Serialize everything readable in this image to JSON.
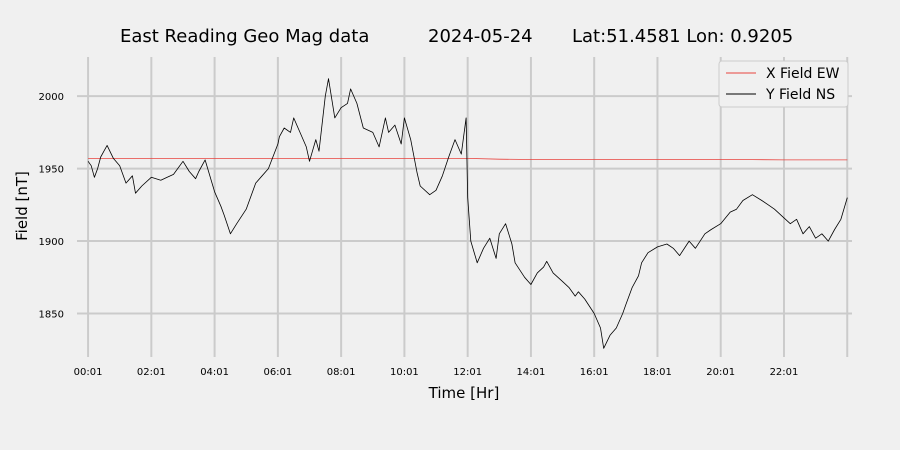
{
  "chart_data": {
    "type": "line",
    "title_parts": [
      "East Reading Geo Mag data",
      "2024-05-24",
      "Lat:51.4581  Lon: 0.9205"
    ],
    "xlabel": "Time  [Hr]",
    "ylabel": "Field  [nT]",
    "xlim": [
      -0.35,
      24.15
    ],
    "ylim": [
      1820,
      2027
    ],
    "x_ticks": [
      0,
      2,
      4,
      6,
      8,
      10,
      12,
      14,
      16,
      18,
      20,
      22,
      24
    ],
    "x_tick_labels": [
      "00:01",
      "02:01",
      "04:01",
      "06:01",
      "08:01",
      "10:01",
      "12:01",
      "14:01",
      "16:01",
      "18:01",
      "20:01",
      "22:01",
      ""
    ],
    "y_ticks": [
      1850,
      1900,
      1950,
      2000
    ],
    "y_tick_labels": [
      "1850",
      "1900",
      "1950",
      "2000"
    ],
    "grid": true,
    "legend_position": "top-right",
    "series": [
      {
        "name": "X Field EW",
        "color": "#e8433e",
        "x": [
          0,
          1,
          2,
          3,
          4,
          5,
          6,
          7,
          8,
          9,
          10,
          11,
          12,
          13,
          14,
          15,
          16,
          17,
          18,
          19,
          20,
          21,
          22,
          23,
          24
        ],
        "values": [
          1957,
          1957,
          1957,
          1957,
          1957,
          1957,
          1957,
          1957,
          1957,
          1957,
          1957,
          1957,
          1957,
          1956.5,
          1956.3,
          1956.3,
          1956.3,
          1956.3,
          1956.3,
          1956.3,
          1956.2,
          1956.2,
          1956,
          1956,
          1956
        ]
      },
      {
        "name": "Y Field NS",
        "color": "#000000",
        "x": [
          0,
          0.1,
          0.2,
          0.3,
          0.4,
          0.5,
          0.6,
          0.8,
          1.0,
          1.2,
          1.4,
          1.5,
          1.7,
          2.0,
          2.3,
          2.5,
          2.7,
          3.0,
          3.2,
          3.4,
          3.5,
          3.7,
          4.0,
          4.2,
          4.3,
          4.5,
          4.7,
          5.0,
          5.3,
          5.5,
          5.7,
          6.0,
          6.05,
          6.2,
          6.4,
          6.5,
          6.7,
          6.9,
          7.0,
          7.2,
          7.3,
          7.5,
          7.6,
          7.8,
          8.0,
          8.2,
          8.3,
          8.5,
          8.7,
          9.0,
          9.2,
          9.4,
          9.5,
          9.7,
          9.9,
          10.0,
          10.2,
          10.4,
          10.5,
          10.8,
          11.0,
          11.2,
          11.4,
          11.6,
          11.8,
          11.95,
          12.0,
          12.1,
          12.3,
          12.5,
          12.7,
          12.9,
          13.0,
          13.2,
          13.4,
          13.5,
          13.8,
          14.0,
          14.2,
          14.4,
          14.5,
          14.7,
          15.0,
          15.2,
          15.4,
          15.5,
          15.7,
          16.0,
          16.2,
          16.3,
          16.5,
          16.7,
          16.9,
          17.0,
          17.2,
          17.4,
          17.5,
          17.7,
          18.0,
          18.3,
          18.5,
          18.7,
          19.0,
          19.2,
          19.5,
          19.7,
          20.0,
          20.3,
          20.5,
          20.7,
          21.0,
          21.3,
          21.5,
          21.7,
          22.0,
          22.2,
          22.4,
          22.6,
          22.8,
          23.0,
          23.2,
          23.4,
          23.6,
          23.8,
          24.0
        ],
        "values": [
          1955,
          1952,
          1944,
          1950,
          1958,
          1962,
          1966,
          1957,
          1952,
          1940,
          1945,
          1933,
          1938,
          1944,
          1942,
          1944,
          1946,
          1955,
          1948,
          1943,
          1948,
          1956,
          1934,
          1924,
          1918,
          1905,
          1912,
          1922,
          1940,
          1945,
          1950,
          1967,
          1972,
          1978,
          1975,
          1985,
          1975,
          1965,
          1955,
          1970,
          1962,
          2000,
          2012,
          1985,
          1992,
          1995,
          2005,
          1995,
          1978,
          1975,
          1965,
          1985,
          1975,
          1980,
          1967,
          1985,
          1970,
          1947,
          1938,
          1932,
          1935,
          1945,
          1958,
          1970,
          1960,
          1985,
          1930,
          1900,
          1885,
          1895,
          1902,
          1888,
          1905,
          1912,
          1898,
          1885,
          1875,
          1870,
          1878,
          1882,
          1886,
          1878,
          1872,
          1868,
          1862,
          1865,
          1860,
          1850,
          1840,
          1826,
          1835,
          1840,
          1850,
          1856,
          1868,
          1876,
          1885,
          1892,
          1896,
          1898,
          1895,
          1890,
          1900,
          1895,
          1905,
          1908,
          1912,
          1920,
          1922,
          1928,
          1932,
          1928,
          1925,
          1922,
          1916,
          1912,
          1915,
          1905,
          1910,
          1902,
          1905,
          1900,
          1908,
          1915,
          1930
        ]
      }
    ]
  }
}
